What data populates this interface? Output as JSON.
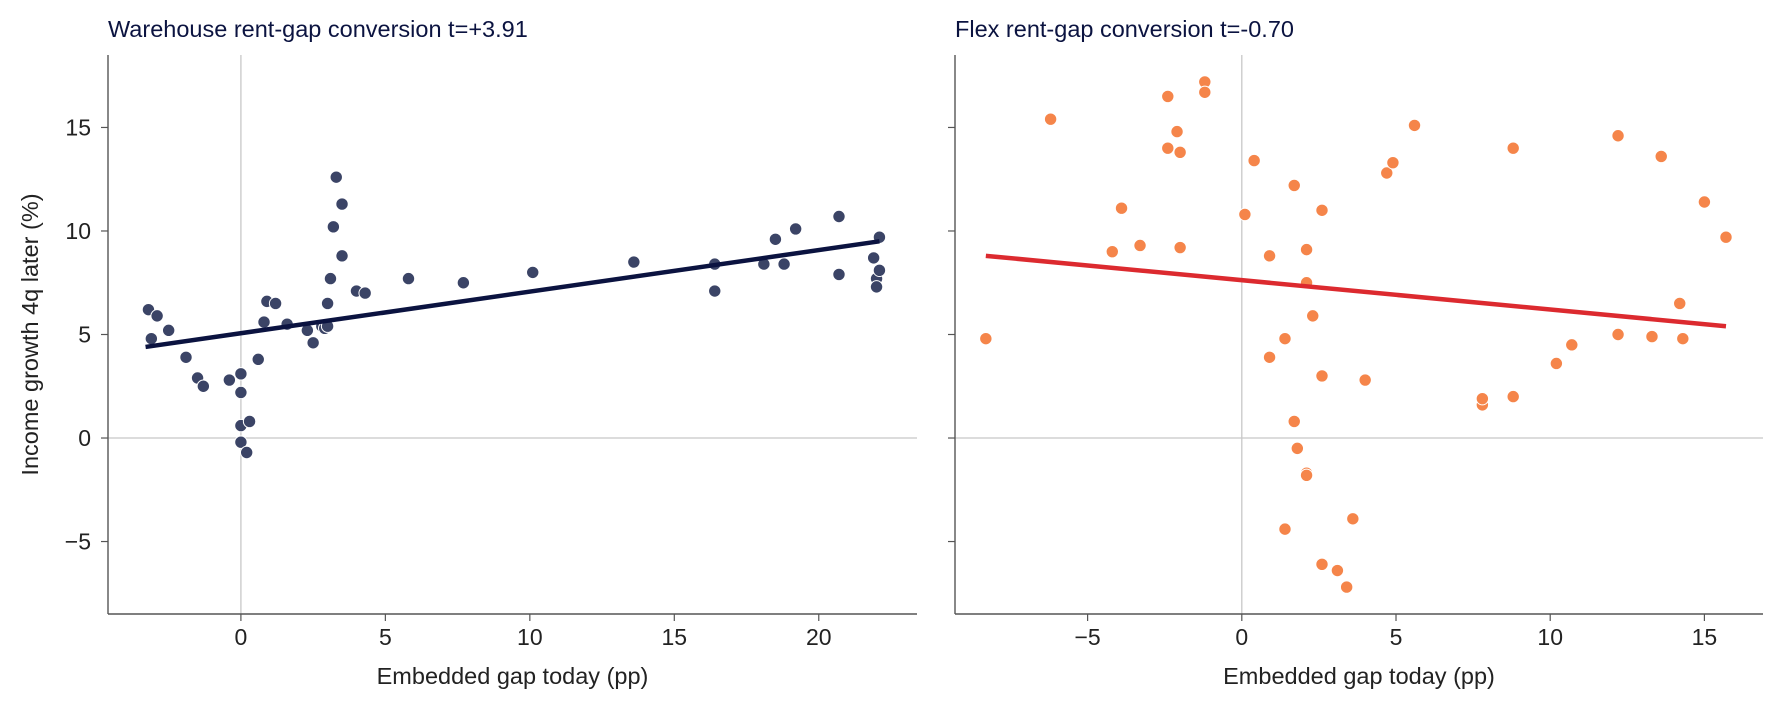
{
  "colors": {
    "title": "#0b1340",
    "axis": "#555555",
    "zero_line": "#c8c8c8",
    "tick_text": "#222222"
  },
  "chart_data": [
    {
      "type": "scatter",
      "title": "Warehouse   rent-gap conversion t=+3.91",
      "xlabel": "Embedded gap today (pp)",
      "ylabel": "Income growth 4q later (%)",
      "xlim": [
        -4.6,
        23.4
      ],
      "ylim": [
        -8.5,
        18.5
      ],
      "xticks": [
        0,
        5,
        10,
        15,
        20
      ],
      "xtick_labels": [
        "0",
        "5",
        "10",
        "15",
        "20"
      ],
      "yticks": [
        -5,
        0,
        5,
        10,
        15
      ],
      "ytick_labels": [
        "−5",
        "0",
        "5",
        "10",
        "15"
      ],
      "show_ytick_labels": true,
      "point_color": "#3b4466",
      "line_color": "#0b1340",
      "fit_line": {
        "x": [
          -3.3,
          22.1
        ],
        "y": [
          4.4,
          9.5
        ]
      },
      "points": [
        [
          -3.2,
          6.2
        ],
        [
          -3.1,
          4.8
        ],
        [
          -2.9,
          5.9
        ],
        [
          -2.5,
          5.2
        ],
        [
          -1.9,
          3.9
        ],
        [
          -1.5,
          2.9
        ],
        [
          -1.3,
          2.5
        ],
        [
          -0.4,
          2.8
        ],
        [
          0.0,
          3.1
        ],
        [
          0.0,
          2.2
        ],
        [
          0.0,
          0.6
        ],
        [
          0.0,
          -0.2
        ],
        [
          0.2,
          -0.7
        ],
        [
          0.3,
          0.8
        ],
        [
          0.6,
          3.8
        ],
        [
          0.8,
          5.6
        ],
        [
          0.9,
          6.6
        ],
        [
          1.2,
          6.5
        ],
        [
          1.6,
          5.5
        ],
        [
          2.3,
          5.2
        ],
        [
          2.5,
          4.6
        ],
        [
          2.8,
          5.4
        ],
        [
          2.9,
          5.3
        ],
        [
          3.0,
          6.5
        ],
        [
          3.0,
          5.4
        ],
        [
          3.1,
          7.7
        ],
        [
          3.2,
          10.2
        ],
        [
          3.3,
          12.6
        ],
        [
          3.5,
          8.8
        ],
        [
          3.5,
          11.3
        ],
        [
          4.0,
          7.1
        ],
        [
          4.3,
          7.0
        ],
        [
          5.8,
          7.7
        ],
        [
          7.7,
          7.5
        ],
        [
          10.1,
          8.0
        ],
        [
          13.6,
          8.5
        ],
        [
          16.4,
          8.4
        ],
        [
          16.4,
          7.1
        ],
        [
          18.1,
          8.4
        ],
        [
          18.5,
          9.6
        ],
        [
          18.8,
          8.4
        ],
        [
          19.2,
          10.1
        ],
        [
          20.7,
          10.7
        ],
        [
          20.7,
          7.9
        ],
        [
          21.9,
          8.7
        ],
        [
          22.0,
          7.7
        ],
        [
          22.0,
          7.3
        ],
        [
          22.1,
          9.7
        ],
        [
          22.1,
          8.1
        ]
      ]
    },
    {
      "type": "scatter",
      "title": "Flex   rent-gap conversion t=-0.70",
      "xlabel": "Embedded gap today (pp)",
      "ylabel": "",
      "xlim": [
        -9.3,
        16.9
      ],
      "ylim": [
        -8.5,
        18.5
      ],
      "xticks": [
        -5,
        0,
        5,
        10,
        15
      ],
      "xtick_labels": [
        "−5",
        "0",
        "5",
        "10",
        "15"
      ],
      "yticks": [
        -5,
        0,
        5,
        10,
        15
      ],
      "ytick_labels": [],
      "show_ytick_labels": false,
      "point_color": "#f5854a",
      "line_color": "#dc2a2f",
      "fit_line": {
        "x": [
          -8.3,
          15.7
        ],
        "y": [
          8.8,
          5.4
        ]
      },
      "points": [
        [
          -8.3,
          4.8
        ],
        [
          -6.2,
          15.4
        ],
        [
          -4.2,
          9.0
        ],
        [
          -3.9,
          11.1
        ],
        [
          -3.3,
          9.3
        ],
        [
          -2.4,
          14.0
        ],
        [
          -2.4,
          16.5
        ],
        [
          -2.1,
          14.8
        ],
        [
          -2.0,
          13.8
        ],
        [
          -2.0,
          9.2
        ],
        [
          -1.2,
          17.2
        ],
        [
          -1.2,
          16.7
        ],
        [
          0.1,
          10.8
        ],
        [
          0.4,
          13.4
        ],
        [
          0.9,
          8.8
        ],
        [
          0.9,
          3.9
        ],
        [
          1.4,
          4.8
        ],
        [
          1.4,
          -4.4
        ],
        [
          1.7,
          12.2
        ],
        [
          1.7,
          0.8
        ],
        [
          1.8,
          -0.5
        ],
        [
          2.1,
          9.1
        ],
        [
          2.1,
          7.5
        ],
        [
          2.1,
          -1.7
        ],
        [
          2.1,
          -1.8
        ],
        [
          2.3,
          5.9
        ],
        [
          2.6,
          11.0
        ],
        [
          2.6,
          3.0
        ],
        [
          2.6,
          -6.1
        ],
        [
          3.1,
          -6.4
        ],
        [
          3.4,
          -7.2
        ],
        [
          3.6,
          -3.9
        ],
        [
          4.0,
          2.8
        ],
        [
          4.7,
          12.8
        ],
        [
          4.9,
          13.3
        ],
        [
          5.6,
          15.1
        ],
        [
          7.8,
          1.6
        ],
        [
          7.8,
          1.9
        ],
        [
          8.8,
          2.0
        ],
        [
          8.8,
          14.0
        ],
        [
          10.2,
          3.6
        ],
        [
          10.7,
          4.5
        ],
        [
          12.2,
          14.6
        ],
        [
          12.2,
          5.0
        ],
        [
          13.3,
          4.9
        ],
        [
          13.6,
          13.6
        ],
        [
          14.2,
          6.5
        ],
        [
          14.3,
          4.8
        ],
        [
          15.0,
          11.4
        ],
        [
          15.7,
          9.7
        ]
      ]
    }
  ]
}
